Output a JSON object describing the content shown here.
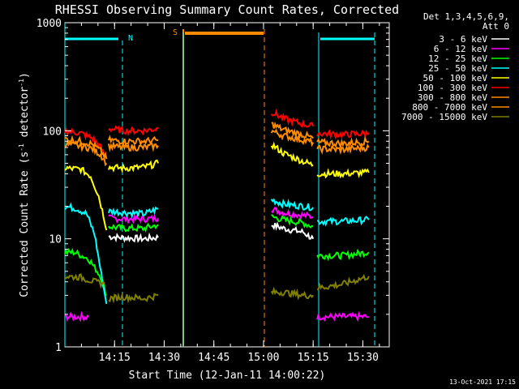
{
  "chart_data": {
    "type": "line",
    "title": "RHESSI Observing Summary Count Rates, Corrected",
    "xlabel": "Start Time (12-Jan-11 14:00:22)",
    "ylabel": "Corrected Count Rate (s",
    "ylabel_sup1": "-1",
    "ylabel_mid": " detector",
    "ylabel_sup2": "-1",
    "ylabel_end": ")",
    "y_scale": "log",
    "ylim": [
      1,
      1000
    ],
    "xlim_minutes": [
      14.0,
      15.633
    ],
    "y_ticks": [
      {
        "v": 1,
        "label": "1"
      },
      {
        "v": 10,
        "label": "10"
      },
      {
        "v": 100,
        "label": "100"
      },
      {
        "v": 1000,
        "label": "1000"
      }
    ],
    "x_ticks": [
      {
        "t": 14.25,
        "label": "14:15"
      },
      {
        "t": 14.5,
        "label": "14:30"
      },
      {
        "t": 14.75,
        "label": "14:45"
      },
      {
        "t": 15.0,
        "label": "15:00"
      },
      {
        "t": 15.25,
        "label": "15:15"
      },
      {
        "t": 15.5,
        "label": "15:30"
      }
    ],
    "legend_header": [
      "Det 1,3,4,5,6,9,",
      "Att 0"
    ],
    "series": [
      {
        "name": "3 - 6 keV",
        "color": "#ffffff",
        "segments": [
          [
            [
              14.22,
              10.5
            ],
            [
              14.3,
              10.2
            ],
            [
              14.4,
              10.0
            ],
            [
              14.47,
              10.3
            ]
          ],
          [
            [
              15.04,
              13.5
            ],
            [
              15.1,
              12.5
            ],
            [
              15.2,
              11.5
            ],
            [
              15.25,
              10.0
            ]
          ]
        ]
      },
      {
        "name": "6 - 12 keV",
        "color": "#ff00ff",
        "segments": [
          [
            [
              14.22,
              15.5
            ],
            [
              14.3,
              15.3
            ],
            [
              14.4,
              15.2
            ],
            [
              14.47,
              15.5
            ]
          ],
          [
            [
              15.04,
              19.0
            ],
            [
              15.1,
              17.5
            ],
            [
              15.2,
              16.5
            ],
            [
              15.25,
              16.0
            ]
          ],
          [
            [
              15.27,
              1.9
            ],
            [
              15.4,
              1.9
            ],
            [
              15.53,
              1.9
            ]
          ],
          [
            [
              14.0,
              1.9
            ],
            [
              14.12,
              1.9
            ]
          ]
        ]
      },
      {
        "name": "12 - 25 keV",
        "color": "#00ff00",
        "segments": [
          [
            [
              14.0,
              7.5
            ],
            [
              14.05,
              7.5
            ],
            [
              14.12,
              6.5
            ],
            [
              14.18,
              4.5
            ],
            [
              14.21,
              3.0
            ]
          ],
          [
            [
              14.22,
              13.0
            ],
            [
              14.3,
              12.5
            ],
            [
              14.4,
              12.5
            ],
            [
              14.47,
              13.5
            ]
          ],
          [
            [
              15.04,
              16.0
            ],
            [
              15.1,
              15.0
            ],
            [
              15.2,
              14.0
            ],
            [
              15.25,
              13.0
            ]
          ],
          [
            [
              15.27,
              7.0
            ],
            [
              15.4,
              7.0
            ],
            [
              15.53,
              7.5
            ]
          ]
        ]
      },
      {
        "name": "25 - 50 keV",
        "color": "#00ffff",
        "segments": [
          [
            [
              14.0,
              20.0
            ],
            [
              14.06,
              19.0
            ],
            [
              14.11,
              17.0
            ],
            [
              14.15,
              11.0
            ],
            [
              14.19,
              4.0
            ],
            [
              14.21,
              2.5
            ]
          ],
          [
            [
              14.22,
              18.0
            ],
            [
              14.3,
              17.5
            ],
            [
              14.4,
              17.0
            ],
            [
              14.47,
              19.0
            ]
          ],
          [
            [
              15.04,
              23.0
            ],
            [
              15.1,
              21.0
            ],
            [
              15.2,
              20.0
            ],
            [
              15.25,
              19.5
            ]
          ],
          [
            [
              15.27,
              14.5
            ],
            [
              15.4,
              14.5
            ],
            [
              15.53,
              15.0
            ]
          ]
        ]
      },
      {
        "name": "50 - 100 keV",
        "color": "#ffff00",
        "segments": [
          [
            [
              14.0,
              45.0
            ],
            [
              14.08,
              44.0
            ],
            [
              14.13,
              38.0
            ],
            [
              14.17,
              25.0
            ],
            [
              14.2,
              15.0
            ],
            [
              14.21,
              12.0
            ]
          ],
          [
            [
              14.22,
              46.0
            ],
            [
              14.3,
              45.0
            ],
            [
              14.4,
              46.0
            ],
            [
              14.47,
              50.0
            ]
          ],
          [
            [
              15.04,
              75.0
            ],
            [
              15.1,
              62.0
            ],
            [
              15.2,
              52.0
            ],
            [
              15.25,
              48.0
            ]
          ],
          [
            [
              15.27,
              40.0
            ],
            [
              15.4,
              40.0
            ],
            [
              15.53,
              41.0
            ]
          ]
        ]
      },
      {
        "name": "100 - 300 keV",
        "color": "#ff0000",
        "segments": [
          [
            [
              14.0,
              100.0
            ],
            [
              14.08,
              95.0
            ],
            [
              14.14,
              85.0
            ],
            [
              14.18,
              70.0
            ],
            [
              14.21,
              55.0
            ]
          ],
          [
            [
              14.22,
              105.0
            ],
            [
              14.3,
              100.0
            ],
            [
              14.4,
              100.0
            ],
            [
              14.47,
              105.0
            ]
          ],
          [
            [
              15.04,
              150.0
            ],
            [
              15.1,
              130.0
            ],
            [
              15.2,
              115.0
            ],
            [
              15.25,
              110.0
            ]
          ],
          [
            [
              15.27,
              95.0
            ],
            [
              15.4,
              92.0
            ],
            [
              15.53,
              95.0
            ]
          ]
        ]
      },
      {
        "name": "300 - 800 keV",
        "color": "#ff8c00",
        "segments": [
          [
            [
              14.0,
              75.0
            ],
            [
              14.08,
              72.0
            ],
            [
              14.14,
              68.0
            ],
            [
              14.18,
              60.0
            ],
            [
              14.21,
              50.0
            ]
          ],
          [
            [
              14.22,
              72.0
            ],
            [
              14.3,
              70.0
            ],
            [
              14.4,
              70.0
            ],
            [
              14.47,
              73.0
            ]
          ],
          [
            [
              15.04,
              100.0
            ],
            [
              15.1,
              90.0
            ],
            [
              15.2,
              82.0
            ],
            [
              15.25,
              78.0
            ]
          ],
          [
            [
              15.27,
              68.0
            ],
            [
              15.4,
              67.0
            ],
            [
              15.53,
              70.0
            ]
          ]
        ]
      },
      {
        "name": "800 - 7000 keV",
        "color": "#ff8c00",
        "segments": [
          [
            [
              14.0,
              84.0
            ],
            [
              14.08,
              80.0
            ],
            [
              14.14,
              75.0
            ],
            [
              14.18,
              65.0
            ],
            [
              14.21,
              55.0
            ]
          ],
          [
            [
              14.22,
              82.0
            ],
            [
              14.3,
              80.0
            ],
            [
              14.4,
              80.0
            ],
            [
              14.47,
              82.0
            ]
          ],
          [
            [
              15.04,
              115.0
            ],
            [
              15.1,
              102.0
            ],
            [
              15.2,
              92.0
            ],
            [
              15.25,
              85.0
            ]
          ],
          [
            [
              15.27,
              78.0
            ],
            [
              15.4,
              76.0
            ],
            [
              15.53,
              80.0
            ]
          ]
        ]
      },
      {
        "name": "7000 - 15000 keV",
        "color": "#808000",
        "segments": [
          [
            [
              14.0,
              4.5
            ],
            [
              14.08,
              4.4
            ],
            [
              14.15,
              4.0
            ],
            [
              14.2,
              3.8
            ]
          ],
          [
            [
              14.22,
              2.8
            ],
            [
              14.3,
              2.9
            ],
            [
              14.4,
              2.8
            ],
            [
              14.47,
              3.0
            ]
          ],
          [
            [
              15.04,
              3.2
            ],
            [
              15.1,
              3.2
            ],
            [
              15.2,
              3.0
            ],
            [
              15.25,
              3.0
            ]
          ],
          [
            [
              15.27,
              3.5
            ],
            [
              15.4,
              3.8
            ],
            [
              15.53,
              4.5
            ]
          ]
        ]
      }
    ],
    "markers": [
      {
        "label": "N",
        "color": "#00ffff"
      },
      {
        "label": "S",
        "color": "#ff8c00"
      }
    ],
    "timestamp": "13-Oct-2021 17:15"
  }
}
